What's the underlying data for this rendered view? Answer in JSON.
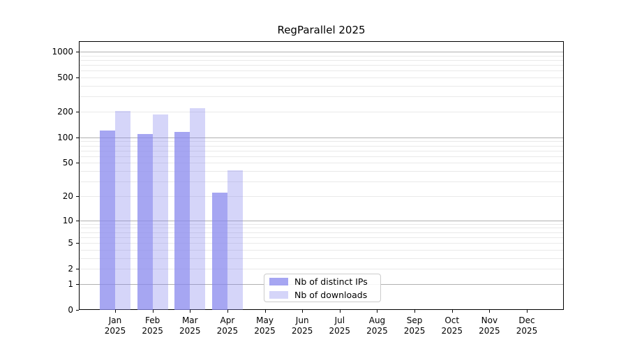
{
  "title": "RegParallel 2025",
  "colors": {
    "bar_base": "#8888ee",
    "dark_alpha": 0.75,
    "light_alpha": 0.35,
    "grid_major": "#b0b0b0",
    "grid_minor": "#e9e9e9",
    "frame": "#000000"
  },
  "chart_data": {
    "type": "bar",
    "title": "RegParallel 2025",
    "categories": [
      "Jan",
      "Feb",
      "Mar",
      "Apr",
      "May",
      "Jun",
      "Jul",
      "Aug",
      "Sep",
      "Oct",
      "Nov",
      "Dec"
    ],
    "category_year": "2025",
    "series": [
      {
        "name": "Nb of distinct IPs",
        "color": "rgba(136,136,238,0.75)",
        "values": [
          120,
          110,
          116,
          22,
          null,
          null,
          null,
          null,
          null,
          null,
          null,
          null
        ]
      },
      {
        "name": "Nb of downloads",
        "color": "rgba(136,136,238,0.35)",
        "values": [
          204,
          186,
          220,
          41,
          null,
          null,
          null,
          null,
          null,
          null,
          null,
          null
        ]
      }
    ],
    "yscale": "log1p",
    "ylim": [
      0,
      1325
    ],
    "yticks": [
      0,
      1,
      2,
      5,
      10,
      20,
      50,
      100,
      200,
      500,
      1000
    ],
    "grid": "major and minor horizontal gridlines",
    "legend_position": "lower center"
  }
}
